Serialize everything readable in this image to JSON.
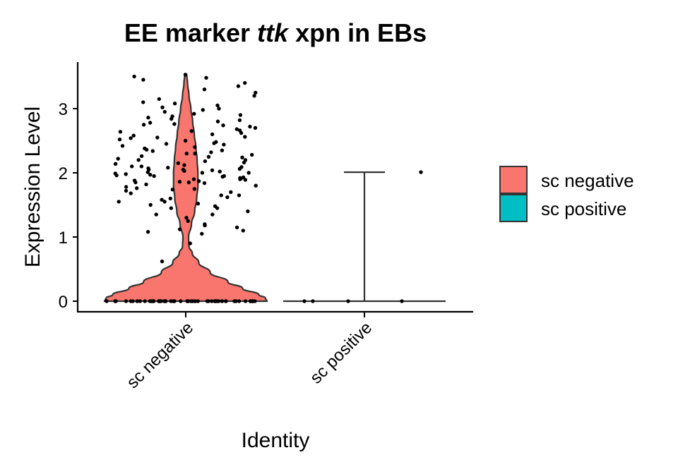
{
  "chart_data": {
    "type": "violin",
    "title": {
      "prefix": "EE marker",
      "gene": "ttk",
      "suffix": "xpn in EBs"
    },
    "xlabel": "Identity",
    "ylabel": "Expression Level",
    "categories": [
      "sc negative",
      "sc positive"
    ],
    "ylim": [
      -0.15,
      3.6
    ],
    "yticks": [
      0,
      1,
      2,
      3
    ],
    "legend": {
      "position": "right",
      "entries": [
        {
          "label": "sc negative",
          "color": "#F8766D"
        },
        {
          "label": "sc positive",
          "color": "#00BFC4"
        }
      ]
    },
    "series": [
      {
        "name": "sc negative",
        "color": "#F8766D",
        "max": 3.53,
        "density_profile": [
          [
            0,
            1.0
          ],
          [
            0.05,
            0.98
          ],
          [
            0.1,
            0.9
          ],
          [
            0.2,
            0.7
          ],
          [
            0.3,
            0.52
          ],
          [
            0.45,
            0.3
          ],
          [
            0.6,
            0.16
          ],
          [
            0.75,
            0.08
          ],
          [
            0.85,
            0.04
          ],
          [
            1.0,
            0.035
          ],
          [
            1.2,
            0.07
          ],
          [
            1.4,
            0.11
          ],
          [
            1.6,
            0.135
          ],
          [
            1.8,
            0.15
          ],
          [
            2.0,
            0.15
          ],
          [
            2.2,
            0.14
          ],
          [
            2.4,
            0.125
          ],
          [
            2.6,
            0.105
          ],
          [
            2.8,
            0.085
          ],
          [
            3.0,
            0.063
          ],
          [
            3.2,
            0.04
          ],
          [
            3.4,
            0.022
          ],
          [
            3.53,
            0.012
          ]
        ],
        "points_at_zero": 60,
        "points_nonzero": [
          0.62,
          0.9,
          1.05,
          1.08,
          1.1,
          1.12,
          1.15,
          1.18,
          1.2,
          1.25,
          1.3,
          1.35,
          1.4,
          1.45,
          1.48,
          1.5,
          1.52,
          1.55,
          1.58,
          1.6,
          1.62,
          1.65,
          1.68,
          1.7,
          1.72,
          1.74,
          1.76,
          1.78,
          1.8,
          1.82,
          1.84,
          1.85,
          1.86,
          1.87,
          1.88,
          1.89,
          1.9,
          1.91,
          1.92,
          1.93,
          1.94,
          1.95,
          1.96,
          1.97,
          1.98,
          1.99,
          2.0,
          2.01,
          2.02,
          2.03,
          2.04,
          2.05,
          2.06,
          2.07,
          2.08,
          2.09,
          2.1,
          2.12,
          2.14,
          2.16,
          2.18,
          2.2,
          2.22,
          2.24,
          2.26,
          2.28,
          2.3,
          2.32,
          2.34,
          2.36,
          2.38,
          2.4,
          2.42,
          2.44,
          2.46,
          2.48,
          2.5,
          2.52,
          2.54,
          2.56,
          2.58,
          2.6,
          2.62,
          2.64,
          2.66,
          2.68,
          2.7,
          2.72,
          2.74,
          2.76,
          2.78,
          2.8,
          2.82,
          2.84,
          2.86,
          2.88,
          2.9,
          2.92,
          2.95,
          2.98,
          3.0,
          3.02,
          3.05,
          3.08,
          3.1,
          3.15,
          3.2,
          3.25,
          3.3,
          3.35,
          3.4,
          3.45,
          3.48,
          3.5,
          3.53,
          1.9,
          1.95,
          2.0,
          2.05,
          2.1,
          2.15,
          2.2,
          2.25,
          1.85,
          1.75,
          2.3,
          2.35,
          2.45,
          1.65,
          1.55,
          2.55,
          2.65,
          2.75,
          1.45,
          1.35
        ]
      },
      {
        "name": "sc positive",
        "color": "#00BFC4",
        "max": 2.01,
        "points": [
          0,
          0,
          0,
          0,
          2.01
        ]
      }
    ]
  }
}
